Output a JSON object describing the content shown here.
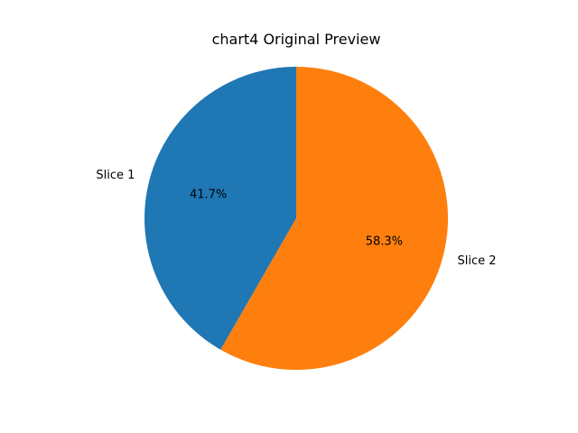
{
  "chart_data": {
    "type": "pie",
    "title": "chart4 Original Preview",
    "slices": [
      {
        "label": "Slice 1",
        "value": 41.7,
        "pct_label": "41.7%",
        "color": "#1f77b4"
      },
      {
        "label": "Slice 2",
        "value": 58.3,
        "pct_label": "58.3%",
        "color": "#ff7f0e"
      }
    ],
    "start_angle_deg": 90,
    "direction": "counterclockwise"
  }
}
